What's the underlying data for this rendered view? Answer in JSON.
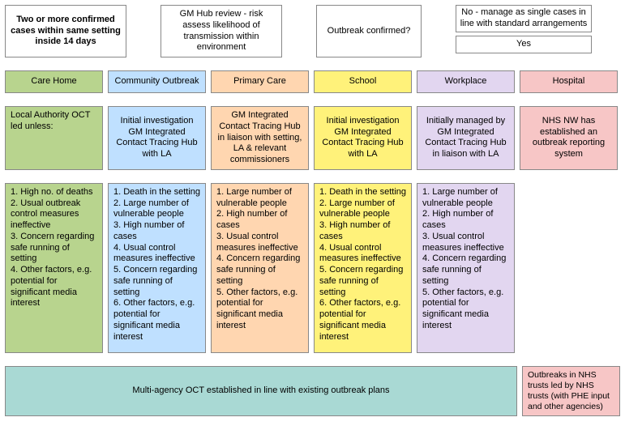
{
  "colors": {
    "careHome": "#b8d48e",
    "community": "#bfe0ff",
    "primaryCare": "#ffd6b0",
    "school": "#fff27a",
    "workplace": "#e2d6f0",
    "hospital": "#f7c6c6",
    "multiAgency": "#a9d9d4",
    "plain": "#ffffff",
    "border": "#888888"
  },
  "top": {
    "confirmedCases": "Two or more confirmed cases within same setting inside 14 days",
    "gmHubReview": "GM Hub review - risk assess likelihood of transmission within environment",
    "outbreakConfirmed": "Outbreak confirmed?",
    "noManage": "No - manage as single cases in line with standard arrangements",
    "yes": "Yes"
  },
  "columns": {
    "careHome": {
      "header": "Care Home"
    },
    "community": {
      "header": "Community Outbreak"
    },
    "primaryCare": {
      "header": "Primary Care"
    },
    "school": {
      "header": "School"
    },
    "workplace": {
      "header": "Workplace"
    },
    "hospital": {
      "header": "Hospital"
    }
  },
  "investigation": {
    "careHome": "Local Authority OCT led unless:",
    "community": "Initial investigation GM Integrated Contact Tracing Hub with LA",
    "primaryCare": "GM Integrated Contact Tracing Hub in liaison with setting, LA & relevant commissioners",
    "school": "Initial investigation GM Integrated Contact Tracing Hub with LA",
    "workplace": "Initially managed by GM Integrated Contact Tracing Hub in liaison with LA",
    "hospital": "NHS NW has established an outbreak reporting system"
  },
  "criteria": {
    "careHome": [
      "High no. of deaths",
      "Usual outbreak control measures ineffective",
      "Concern regarding safe running of setting",
      "Other factors, e.g. potential for significant media interest"
    ],
    "community": [
      "Death in the setting",
      "Large number of vulnerable people",
      "High number of cases",
      "Usual control measures ineffective",
      "Concern regarding safe running of setting",
      "Other factors, e.g. potential for significant media interest"
    ],
    "primaryCare": [
      "Large number of vulnerable people",
      "High number of cases",
      "Usual control measures ineffective",
      "Concern regarding safe running of setting",
      "Other factors, e.g. potential for significant media interest"
    ],
    "school": [
      "Death in the setting",
      "Large number of vulnerable people",
      "High number of cases",
      "Usual control measures ineffective",
      "Concern regarding safe running of setting",
      "Other factors, e.g. potential for significant media interest"
    ],
    "workplace": [
      "Large number of vulnerable people",
      "High number of cases",
      "Usual control measures ineffective",
      "Concern regarding safe running of setting",
      "Other factors, e.g. potential for significant media interest"
    ]
  },
  "bottom": {
    "multiAgency": "Multi-agency OCT established in line with existing outbreak plans",
    "nhsOutbreak": "Outbreaks in NHS trusts led by NHS trusts (with PHE input and other agencies)"
  }
}
